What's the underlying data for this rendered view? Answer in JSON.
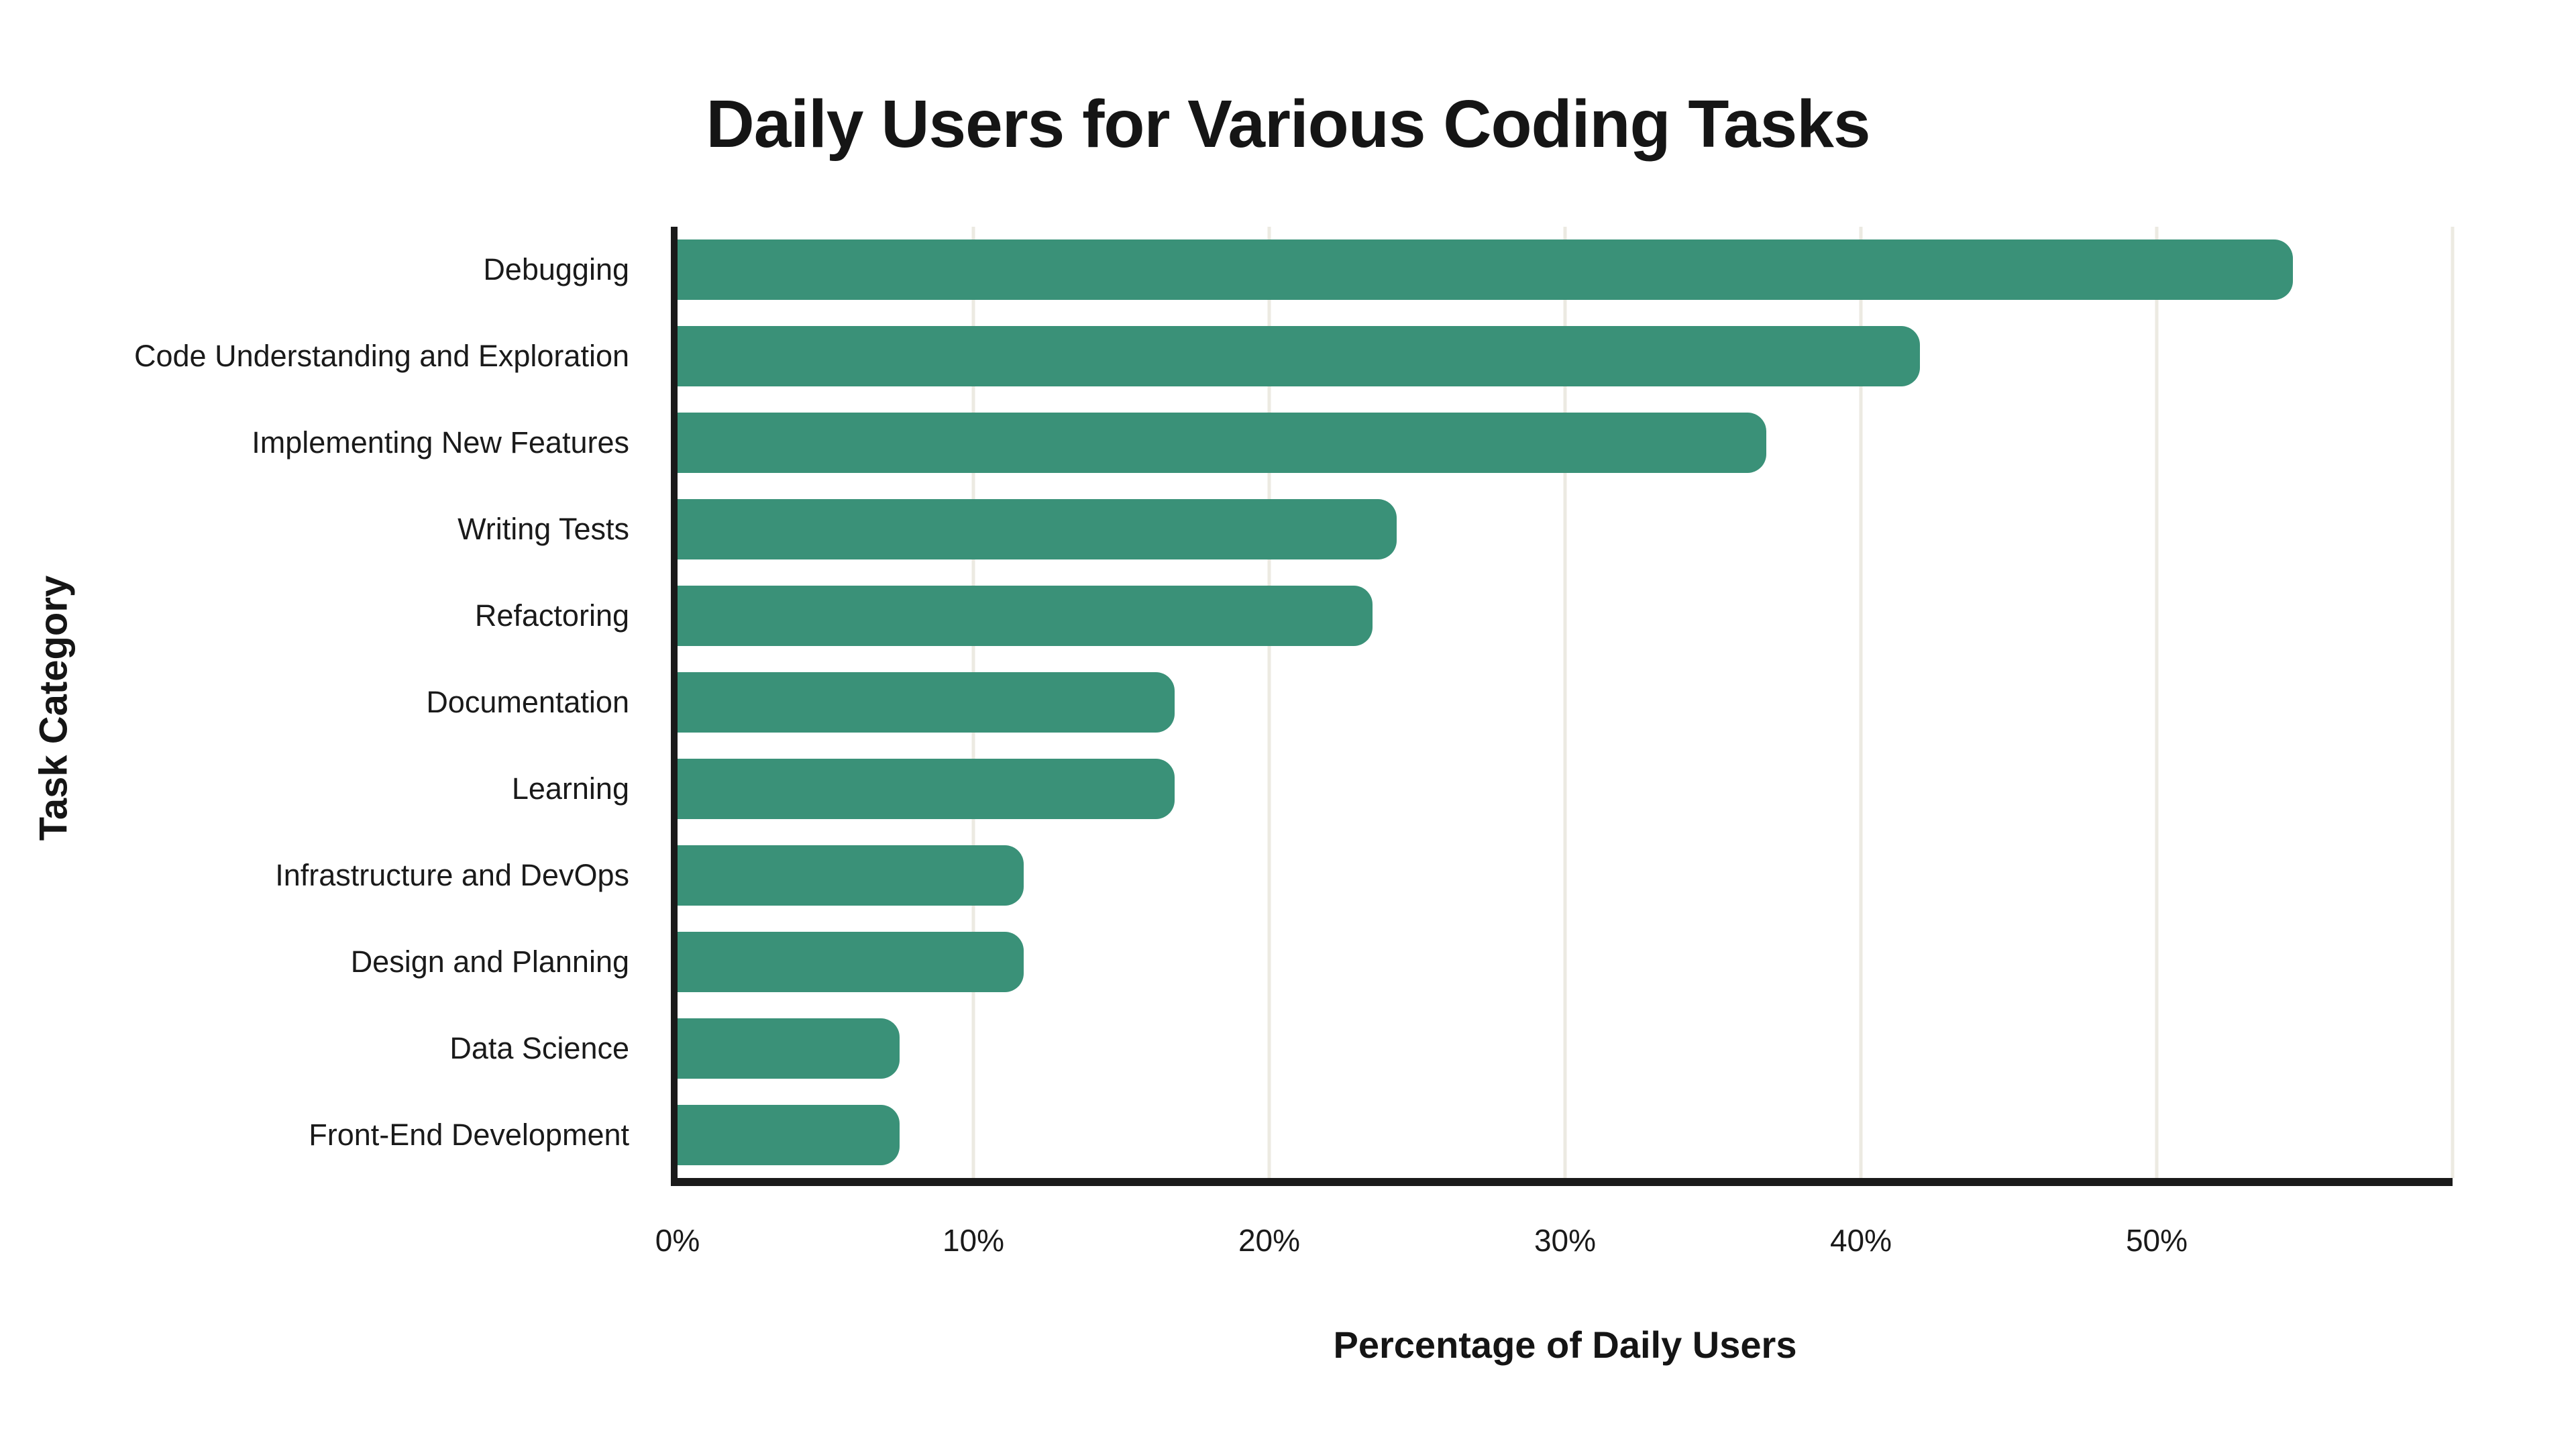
{
  "chart_data": {
    "type": "bar",
    "orientation": "horizontal",
    "title": "Daily Users for Various Coding Tasks",
    "xlabel": "Percentage of Daily Users",
    "ylabel": "Task Category",
    "categories": [
      "Debugging",
      "Code Understanding and Exploration",
      "Implementing New Features",
      "Writing Tests",
      "Refactoring",
      "Documentation",
      "Learning",
      "Infrastructure and DevOps",
      "Design and Planning",
      "Data Science",
      "Front-End Development"
    ],
    "values": [
      54.6,
      42.0,
      36.8,
      24.3,
      23.5,
      16.8,
      16.8,
      11.7,
      11.7,
      7.5,
      7.5
    ],
    "value_unit": "%",
    "xlim": [
      0,
      60
    ],
    "tick_values": [
      0,
      10,
      20,
      30,
      40,
      50
    ],
    "tick_labels": [
      "0%",
      "10%",
      "20%",
      "30%",
      "40%",
      "50%"
    ],
    "gridline_values": [
      10,
      20,
      30,
      40,
      50,
      60
    ],
    "grid": "vertical",
    "legend": "none",
    "colors": {
      "bar_color": "#3a9178",
      "gridline_color": "#eceae2",
      "axis_color": "#1a1a1a",
      "text_color": "#1a1a1a",
      "background": "#ffffff"
    }
  }
}
